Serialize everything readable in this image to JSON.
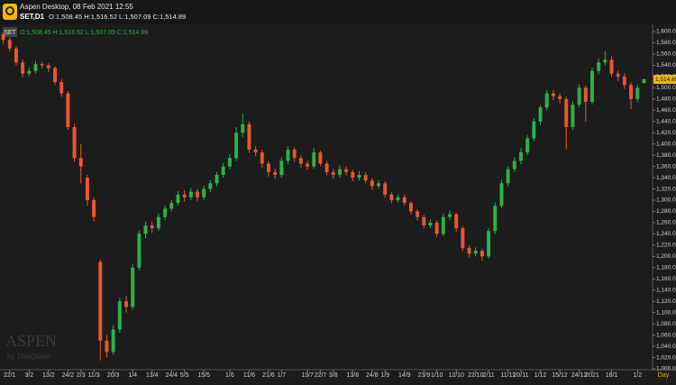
{
  "header": {
    "app_title": "Aspen Desktop, 08 Feb 2021 12:55",
    "symbol_timeframe": "SET,D1",
    "ohlc": "O:1,508.45 H:1,516.52 L:1,507.09 C:1,514.89"
  },
  "chart_data": {
    "type": "candlestick",
    "symbol": "SET",
    "ohlc_label": "O:1,508.45 H:1,516.52 L:1,507.09 C:1,514.89",
    "up_color": "#2bb24c",
    "down_color": "#e9572f",
    "open": [
      1595,
      1585,
      1570,
      1545,
      1525,
      1530,
      1542,
      1540,
      1535,
      1510,
      1490,
      1430,
      1375,
      1340,
      1300,
      1190,
      1050,
      1030,
      1070,
      1120,
      1110,
      1180,
      1240,
      1255,
      1250,
      1270,
      1285,
      1295,
      1310,
      1305,
      1315,
      1305,
      1320,
      1330,
      1345,
      1360,
      1375,
      1420,
      1435,
      1390,
      1385,
      1365,
      1350,
      1345,
      1370,
      1390,
      1375,
      1365,
      1360,
      1385,
      1365,
      1350,
      1345,
      1355,
      1350,
      1340,
      1345,
      1335,
      1325,
      1330,
      1310,
      1300,
      1305,
      1295,
      1280,
      1270,
      1255,
      1260,
      1240,
      1270,
      1275,
      1250,
      1215,
      1205,
      1210,
      1200,
      1245,
      1290,
      1330,
      1355,
      1370,
      1385,
      1410,
      1440,
      1465,
      1490,
      1485,
      1480,
      1430,
      1470,
      1500,
      1475,
      1530,
      1545,
      1550,
      1525,
      1520,
      1505,
      1480,
      1508.45
    ],
    "high": [
      1600,
      1590,
      1574,
      1550,
      1536,
      1548,
      1546,
      1544,
      1538,
      1515,
      1494,
      1436,
      1400,
      1345,
      1305,
      1195,
      1060,
      1078,
      1126,
      1130,
      1186,
      1246,
      1262,
      1262,
      1276,
      1290,
      1300,
      1316,
      1318,
      1322,
      1320,
      1326,
      1336,
      1350,
      1366,
      1382,
      1430,
      1455,
      1440,
      1396,
      1390,
      1370,
      1356,
      1376,
      1396,
      1394,
      1380,
      1370,
      1392,
      1388,
      1370,
      1356,
      1362,
      1360,
      1354,
      1352,
      1350,
      1340,
      1336,
      1334,
      1314,
      1310,
      1310,
      1298,
      1284,
      1274,
      1266,
      1264,
      1276,
      1282,
      1278,
      1254,
      1220,
      1216,
      1214,
      1250,
      1296,
      1336,
      1360,
      1376,
      1392,
      1416,
      1446,
      1470,
      1496,
      1496,
      1490,
      1484,
      1476,
      1506,
      1504,
      1536,
      1552,
      1565,
      1556,
      1530,
      1526,
      1510,
      1506,
      1516.52
    ],
    "low": [
      1578,
      1565,
      1540,
      1518,
      1520,
      1526,
      1534,
      1528,
      1505,
      1484,
      1425,
      1368,
      1330,
      1290,
      1262,
      1015,
      1020,
      1025,
      1064,
      1100,
      1105,
      1175,
      1232,
      1242,
      1245,
      1264,
      1280,
      1290,
      1298,
      1300,
      1298,
      1300,
      1314,
      1325,
      1340,
      1354,
      1370,
      1412,
      1384,
      1378,
      1358,
      1342,
      1338,
      1340,
      1364,
      1368,
      1358,
      1354,
      1356,
      1360,
      1344,
      1338,
      1340,
      1344,
      1334,
      1335,
      1330,
      1318,
      1320,
      1304,
      1294,
      1296,
      1290,
      1274,
      1264,
      1250,
      1250,
      1234,
      1236,
      1264,
      1244,
      1210,
      1198,
      1200,
      1192,
      1196,
      1240,
      1286,
      1325,
      1350,
      1364,
      1380,
      1405,
      1434,
      1460,
      1478,
      1472,
      1390,
      1425,
      1465,
      1440,
      1470,
      1524,
      1540,
      1520,
      1512,
      1498,
      1462,
      1474,
      1507.09
    ],
    "close": [
      1585,
      1570,
      1545,
      1525,
      1530,
      1542,
      1540,
      1535,
      1510,
      1490,
      1430,
      1375,
      1360,
      1300,
      1270,
      1050,
      1030,
      1070,
      1120,
      1110,
      1180,
      1240,
      1255,
      1250,
      1270,
      1285,
      1295,
      1310,
      1305,
      1315,
      1305,
      1320,
      1330,
      1345,
      1360,
      1375,
      1420,
      1435,
      1390,
      1385,
      1365,
      1350,
      1345,
      1370,
      1390,
      1375,
      1365,
      1360,
      1385,
      1365,
      1350,
      1345,
      1355,
      1350,
      1340,
      1345,
      1335,
      1325,
      1330,
      1310,
      1300,
      1305,
      1295,
      1280,
      1270,
      1255,
      1260,
      1240,
      1270,
      1275,
      1250,
      1215,
      1205,
      1210,
      1200,
      1245,
      1290,
      1330,
      1355,
      1370,
      1385,
      1410,
      1440,
      1465,
      1490,
      1485,
      1480,
      1430,
      1470,
      1500,
      1475,
      1530,
      1545,
      1550,
      1525,
      1520,
      1505,
      1480,
      1500,
      1514.89
    ],
    "last_price": {
      "value": 1514.89,
      "label": "1,514.89"
    },
    "ylim": [
      1000,
      1600
    ],
    "yticks": [
      {
        "value": 1000,
        "label": "1,000.00"
      },
      {
        "value": 1020,
        "label": "1,020.00"
      },
      {
        "value": 1040,
        "label": "1,040.00"
      },
      {
        "value": 1060,
        "label": "1,060.00"
      },
      {
        "value": 1080,
        "label": "1,080.00"
      },
      {
        "value": 1100,
        "label": "1,100.00"
      },
      {
        "value": 1120,
        "label": "1,120.00"
      },
      {
        "value": 1140,
        "label": "1,140.00"
      },
      {
        "value": 1160,
        "label": "1,160.00"
      },
      {
        "value": 1180,
        "label": "1,180.00"
      },
      {
        "value": 1200,
        "label": "1,200.00"
      },
      {
        "value": 1220,
        "label": "1,220.00"
      },
      {
        "value": 1240,
        "label": "1,240.00"
      },
      {
        "value": 1260,
        "label": "1,260.00"
      },
      {
        "value": 1280,
        "label": "1,280.00"
      },
      {
        "value": 1300,
        "label": "1,300.00"
      },
      {
        "value": 1320,
        "label": "1,320.00"
      },
      {
        "value": 1340,
        "label": "1,340.00"
      },
      {
        "value": 1360,
        "label": "1,360.00"
      },
      {
        "value": 1380,
        "label": "1,380.00"
      },
      {
        "value": 1400,
        "label": "1,400.00"
      },
      {
        "value": 1420,
        "label": "1,420.00"
      },
      {
        "value": 1440,
        "label": "1,440.00"
      },
      {
        "value": 1460,
        "label": "1,460.00"
      },
      {
        "value": 1480,
        "label": "1,480.00"
      },
      {
        "value": 1500,
        "label": "1,500.00"
      },
      {
        "value": 1520,
        "label": "1,520.00"
      },
      {
        "value": 1540,
        "label": "1,540.00"
      },
      {
        "value": 1560,
        "label": "1,560.00"
      },
      {
        "value": 1580,
        "label": "1,580.00"
      },
      {
        "value": 1600,
        "label": "1,600.00"
      }
    ],
    "xlim": [
      -0.5,
      99.5
    ],
    "xticks": [
      {
        "value": 1,
        "label": "22/1"
      },
      {
        "value": 4,
        "label": "3/2"
      },
      {
        "value": 7,
        "label": "13/2"
      },
      {
        "value": 10,
        "label": "24/2"
      },
      {
        "value": 12,
        "label": "2/3"
      },
      {
        "value": 14,
        "label": "11/3"
      },
      {
        "value": 17,
        "label": "20/3"
      },
      {
        "value": 20,
        "label": "1/4"
      },
      {
        "value": 23,
        "label": "13/4"
      },
      {
        "value": 26,
        "label": "24/4"
      },
      {
        "value": 28,
        "label": "5/5"
      },
      {
        "value": 31,
        "label": "15/5"
      },
      {
        "value": 35,
        "label": "1/6"
      },
      {
        "value": 38,
        "label": "11/6"
      },
      {
        "value": 41,
        "label": "21/6"
      },
      {
        "value": 43,
        "label": "1/7"
      },
      {
        "value": 47,
        "label": "13/7"
      },
      {
        "value": 49,
        "label": "22/7"
      },
      {
        "value": 51,
        "label": "3/8"
      },
      {
        "value": 54,
        "label": "13/8"
      },
      {
        "value": 57,
        "label": "24/8"
      },
      {
        "value": 59,
        "label": "1/9"
      },
      {
        "value": 62,
        "label": "14/9"
      },
      {
        "value": 65,
        "label": "23/9"
      },
      {
        "value": 67,
        "label": "1/10"
      },
      {
        "value": 70,
        "label": "12/10"
      },
      {
        "value": 73,
        "label": "22/10"
      },
      {
        "value": 75,
        "label": "2/11"
      },
      {
        "value": 78,
        "label": "11/11"
      },
      {
        "value": 80,
        "label": "20/11"
      },
      {
        "value": 83,
        "label": "1/12"
      },
      {
        "value": 86,
        "label": "15/12"
      },
      {
        "value": 89,
        "label": "24/12"
      },
      {
        "value": 91,
        "label": "2021"
      },
      {
        "value": 94,
        "label": "18/1"
      },
      {
        "value": 98,
        "label": "1/2"
      }
    ],
    "x_unit_label": "Day",
    "watermark": {
      "brand": "ASPEN",
      "by": "by ThaiQuest"
    }
  }
}
